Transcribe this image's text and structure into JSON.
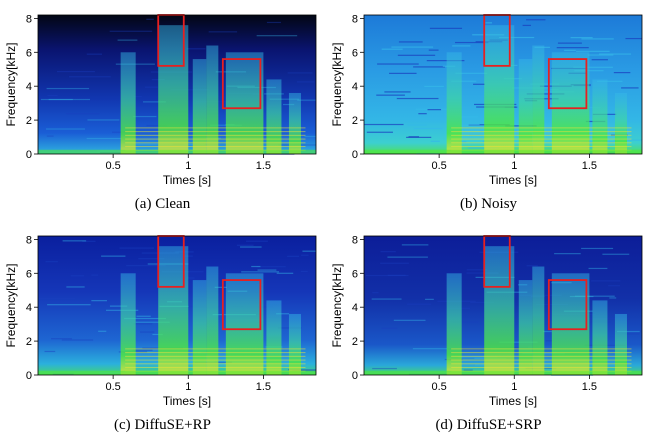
{
  "panels": [
    {
      "id": "a",
      "caption_prefix": "(a)",
      "caption_text": "Clean"
    },
    {
      "id": "b",
      "caption_prefix": "(b)",
      "caption_text": "Noisy"
    },
    {
      "id": "c",
      "caption_prefix": "(c)",
      "caption_text": "DiffuSE+RP"
    },
    {
      "id": "d",
      "caption_prefix": "(d)",
      "caption_text": "DiffuSE+SRP"
    }
  ],
  "axes": {
    "xlabel": "Times [s]",
    "ylabel": "Frequency[kHz]",
    "xticks": [
      {
        "value": 0.5,
        "label": "0.5"
      },
      {
        "value": 1,
        "label": "1"
      },
      {
        "value": 1.5,
        "label": "1.5"
      }
    ],
    "yticks": [
      {
        "value": 0,
        "label": "0"
      },
      {
        "value": 2,
        "label": "2"
      },
      {
        "value": 4,
        "label": "4"
      },
      {
        "value": 6,
        "label": "6"
      },
      {
        "value": 8,
        "label": "8"
      }
    ],
    "xlim": [
      0,
      1.85
    ],
    "ylim": [
      0,
      8.2
    ]
  },
  "highlight_boxes": [
    {
      "t_start": 0.8,
      "t_end": 0.97,
      "f_low": 5.2,
      "f_high": 8.2
    },
    {
      "t_start": 1.23,
      "t_end": 1.48,
      "f_low": 2.7,
      "f_high": 5.6
    }
  ],
  "colors": {
    "box": "#e8201f",
    "spectrogram_low": "#0b1d9a",
    "spectrogram_mid": "#35b8e8",
    "spectrogram_high": "#4fe83a"
  }
}
